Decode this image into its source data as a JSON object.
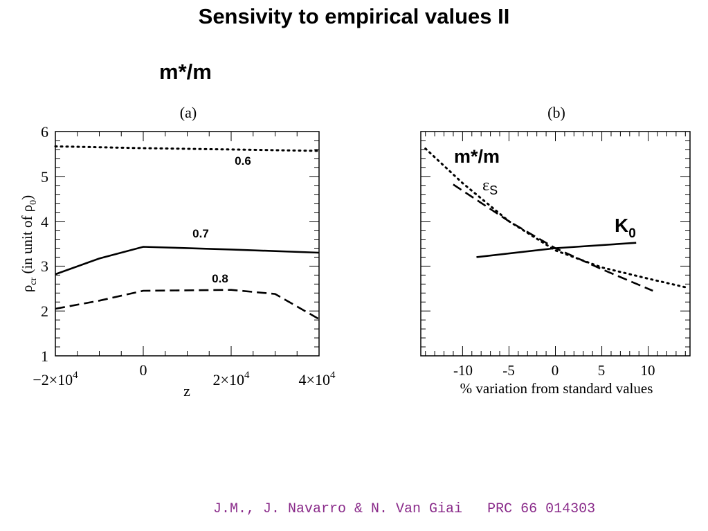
{
  "slide": {
    "title": "Sensivity to empirical values II",
    "subtitle": "m*/m",
    "footer": "J.M., J. Navarro & N. Van Giai   PRC 66 014303",
    "footer_color": "#8a2b8a"
  },
  "chart_data": [
    {
      "type": "line",
      "panel_label": "(a)",
      "xlabel": "z",
      "ylabel": "ρcr (in unit of ρ0)",
      "xlim": [
        -20000,
        40000
      ],
      "ylim": [
        1,
        6
      ],
      "x_ticks": [
        "-2×10^4",
        "0",
        "2×10^4",
        "4×10^4"
      ],
      "y_ticks": [
        "1",
        "2",
        "3",
        "4",
        "5",
        "6"
      ],
      "grid": false,
      "series": [
        {
          "name": "0.6",
          "style": "dotted",
          "x": [
            -20000,
            0,
            20000,
            40000
          ],
          "y": [
            5.67,
            5.63,
            5.6,
            5.57
          ]
        },
        {
          "name": "0.7",
          "style": "solid",
          "x": [
            -20000,
            -10000,
            0,
            20000,
            40000
          ],
          "y": [
            2.82,
            3.17,
            3.43,
            3.37,
            3.3
          ]
        },
        {
          "name": "0.8",
          "style": "dashed",
          "x": [
            -20000,
            -10000,
            0,
            20000,
            30000,
            40000
          ],
          "y": [
            2.05,
            2.23,
            2.45,
            2.47,
            2.38,
            1.82
          ]
        }
      ]
    },
    {
      "type": "line",
      "panel_label": "(b)",
      "xlabel": "% variation from standard values",
      "ylabel": "",
      "xlim": [
        -14.5,
        14.5
      ],
      "ylim": [
        1,
        6
      ],
      "x_ticks": [
        "-10",
        "-5",
        "0",
        "5",
        "10"
      ],
      "grid": false,
      "series": [
        {
          "name": "m*/m",
          "style": "dotted",
          "x": [
            -14,
            -10,
            -5,
            0,
            5,
            10,
            14
          ],
          "y": [
            5.62,
            4.85,
            4.0,
            3.35,
            2.97,
            2.72,
            2.53
          ]
        },
        {
          "name": "εS",
          "style": "dashed",
          "x": [
            -11,
            -5,
            0,
            5,
            10.5
          ],
          "y": [
            4.82,
            4.0,
            3.4,
            2.93,
            2.45
          ]
        },
        {
          "name": "K0",
          "style": "solid",
          "x": [
            -8.5,
            0,
            8.7
          ],
          "y": [
            3.2,
            3.4,
            3.52
          ]
        }
      ]
    }
  ]
}
